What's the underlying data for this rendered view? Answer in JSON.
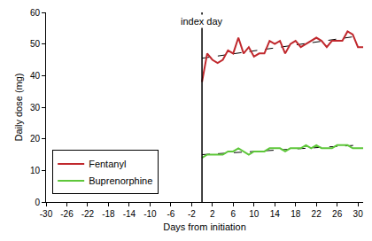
{
  "chart_data": {
    "type": "line",
    "xlabel": "Days from initiation",
    "ylabel": "Daily dose (mg)",
    "xlim": [
      -30,
      31
    ],
    "xticks": [
      -30,
      -26,
      -22,
      -18,
      -14,
      -10,
      -6,
      -2,
      2,
      6,
      10,
      14,
      18,
      22,
      26,
      30
    ],
    "ylim": [
      0,
      60
    ],
    "yticks": [
      0,
      10,
      20,
      30,
      40,
      50,
      60
    ],
    "grid": false,
    "legend": "bottom left",
    "annotations": [
      {
        "x": 0,
        "text": "index day"
      }
    ],
    "x": [
      0,
      1,
      2,
      3,
      4,
      5,
      6,
      7,
      8,
      9,
      10,
      11,
      12,
      13,
      14,
      15,
      16,
      17,
      18,
      19,
      20,
      21,
      22,
      23,
      24,
      25,
      26,
      27,
      28,
      29,
      30,
      31
    ],
    "series": [
      {
        "name": "Fentanyl",
        "color": "#c0282d",
        "values": [
          38,
          47,
          45,
          44,
          45,
          48,
          47,
          52,
          47,
          49,
          46,
          47,
          47,
          51,
          50,
          51,
          47,
          50,
          51,
          49,
          50,
          51,
          52,
          51,
          49,
          51,
          51,
          51,
          54,
          53,
          49,
          49
        ],
        "trend": {
          "x": [
            0,
            30
          ],
          "values": [
            45.5,
            52.5
          ],
          "line_style": "dashed",
          "color": "#000000"
        }
      },
      {
        "name": "Buprenorphine",
        "color": "#5ec73a",
        "values": [
          14,
          15,
          15,
          15,
          15,
          16,
          16,
          17,
          16,
          15,
          16,
          16,
          16,
          17,
          17,
          17,
          16,
          17,
          17,
          17,
          18,
          17,
          18,
          17,
          17,
          17,
          18,
          18,
          18,
          17,
          17,
          17
        ],
        "trend": {
          "x": [
            0,
            30
          ],
          "values": [
            15,
            18
          ],
          "line_style": "dashed",
          "color": "#000000"
        }
      }
    ]
  }
}
